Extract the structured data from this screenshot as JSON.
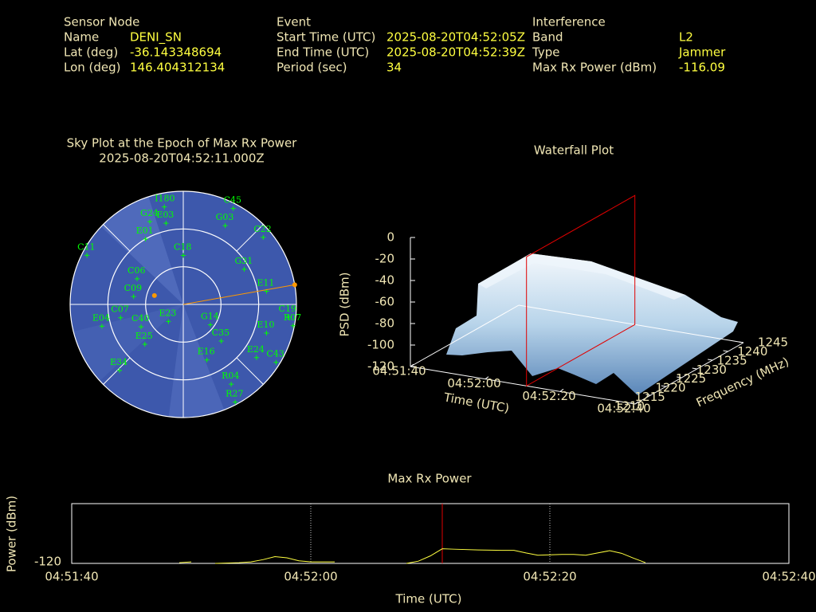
{
  "header": {
    "sensor": {
      "title": "Sensor Node",
      "rows": [
        [
          "Name",
          "DENI_SN"
        ],
        [
          "Lat (deg)",
          "-36.143348694"
        ],
        [
          "Lon (deg)",
          "146.404312134"
        ]
      ]
    },
    "event": {
      "title": "Event",
      "rows": [
        [
          "Start Time (UTC)",
          "2025-08-20T04:52:05Z"
        ],
        [
          "End Time (UTC)",
          "2025-08-20T04:52:39Z"
        ],
        [
          "Period (sec)",
          "34"
        ]
      ]
    },
    "interference": {
      "title": "Interference",
      "rows": [
        [
          "Band",
          "L2"
        ],
        [
          "Type",
          "Jammer"
        ],
        [
          "Max Rx Power (dBm)",
          "-116.09"
        ]
      ]
    }
  },
  "sky_plot": {
    "title": "Sky Plot at the Epoch of Max Rx Power",
    "subtitle": "2025-08-20T04:52:11.000Z",
    "elevation_rings": [
      0,
      30,
      60
    ],
    "satellite_color": "#00ff00",
    "satellites": [
      {
        "label": "C45",
        "az": 27.5,
        "el": 4
      },
      {
        "label": "I180",
        "az": 349,
        "el": 11
      },
      {
        "label": "G24",
        "az": 338,
        "el": 19
      },
      {
        "label": "E03",
        "az": 348,
        "el": 24
      },
      {
        "label": "G03",
        "az": 28,
        "el": 19
      },
      {
        "label": "C22",
        "az": 50,
        "el": 7
      },
      {
        "label": "C11",
        "az": 297,
        "el": 4
      },
      {
        "label": "E01",
        "az": 330,
        "el": 30
      },
      {
        "label": "C18",
        "az": 0,
        "el": 51
      },
      {
        "label": "G31",
        "az": 60,
        "el": 34
      },
      {
        "label": "E11",
        "az": 81,
        "el": 23
      },
      {
        "label": "C19",
        "az": 97,
        "el": 6
      },
      {
        "label": "C09",
        "az": 279,
        "el": 50
      },
      {
        "label": "C06",
        "az": 299,
        "el": 48
      },
      {
        "label": "G14",
        "az": 127,
        "el": 63
      },
      {
        "label": "C35",
        "az": 134,
        "el": 48
      },
      {
        "label": "E10",
        "az": 109,
        "el": 20
      },
      {
        "label": "E24",
        "az": 126,
        "el": 18
      },
      {
        "label": "C43",
        "az": 122,
        "el": 3
      },
      {
        "label": "E16",
        "az": 157,
        "el": 42
      },
      {
        "label": "C40",
        "az": 242,
        "el": 52
      },
      {
        "label": "E25",
        "az": 224,
        "el": 46
      },
      {
        "label": "C07",
        "az": 258,
        "el": 39
      },
      {
        "label": "E04",
        "az": 255,
        "el": 23
      },
      {
        "label": "E34",
        "az": 224,
        "el": 17
      },
      {
        "label": "R27",
        "az": 152,
        "el": 2
      },
      {
        "label": "R04",
        "az": 149,
        "el": 16
      },
      {
        "label": "R07",
        "az": 101,
        "el": 1
      },
      {
        "label": "E23",
        "az": 221,
        "el": 72
      }
    ],
    "jammer": {
      "az": 80,
      "el": 0,
      "color": "#ff9900"
    },
    "other_point": {
      "az": 287,
      "el": 66
    }
  },
  "waterfall": {
    "title": "Waterfall Plot",
    "zlabel": "PSD (dBm)",
    "xlabel": "Time (UTC)",
    "ylabel": "Frequency (MHz)",
    "zlim": [
      -120,
      0
    ],
    "zticks": [
      0,
      -20,
      -40,
      -60,
      -80,
      -100,
      -120
    ],
    "xlim": [
      "04:51:40",
      "04:52:40"
    ],
    "xticks": [
      "04:51:40",
      "04:52:00",
      "04:52:20",
      "04:52:40"
    ],
    "ylim": [
      1210,
      1245
    ],
    "yticks": [
      1210,
      1215,
      1220,
      1225,
      1230,
      1235,
      1240,
      1245
    ],
    "marker_time": "04:52:11",
    "marker_color": "#e00000"
  },
  "max_rx_power": {
    "type": "line",
    "title": "Max Rx Power",
    "xlabel": "Time (UTC)",
    "ylabel": "Power (dBm)",
    "xlim": [
      "04:51:40",
      "04:52:40"
    ],
    "xticks": [
      "04:51:40",
      "04:52:00",
      "04:52:20",
      "04:52:40"
    ],
    "ylim": [
      -120,
      -104
    ],
    "yticks": [
      -120
    ],
    "grid": true,
    "color": "#ffff40",
    "marker_time": "04:52:11",
    "marker_color": "#e00000",
    "x": [
      "04:51:49",
      "04:51:50",
      "04:51:51",
      "04:51:52",
      "04:51:54",
      "04:51:55",
      "04:51:56",
      "04:51:57",
      "04:51:58",
      "04:51:59",
      "04:52:00",
      "04:52:01",
      "04:52:02",
      "04:52:05",
      "04:52:08",
      "04:52:09",
      "04:52:10",
      "04:52:11",
      "04:52:12",
      "04:52:14",
      "04:52:16",
      "04:52:17",
      "04:52:18",
      "04:52:19",
      "04:52:20",
      "04:52:21",
      "04:52:22",
      "04:52:23",
      "04:52:24",
      "04:52:25",
      "04:52:26",
      "04:52:27",
      "04:52:28"
    ],
    "values": [
      -119.8,
      -119.6,
      null,
      -120,
      -119.8,
      -119.6,
      -119,
      -118.2,
      -118.5,
      -119.3,
      -119.6,
      -119.6,
      -119.6,
      null,
      -120,
      -119.4,
      -118,
      -116.09,
      -116.2,
      -116.4,
      -116.5,
      -116.5,
      -117.2,
      -117.8,
      -117.7,
      -117.6,
      -117.6,
      -117.8,
      -117.2,
      -116.6,
      -117.3,
      -118.6,
      -119.8
    ]
  }
}
